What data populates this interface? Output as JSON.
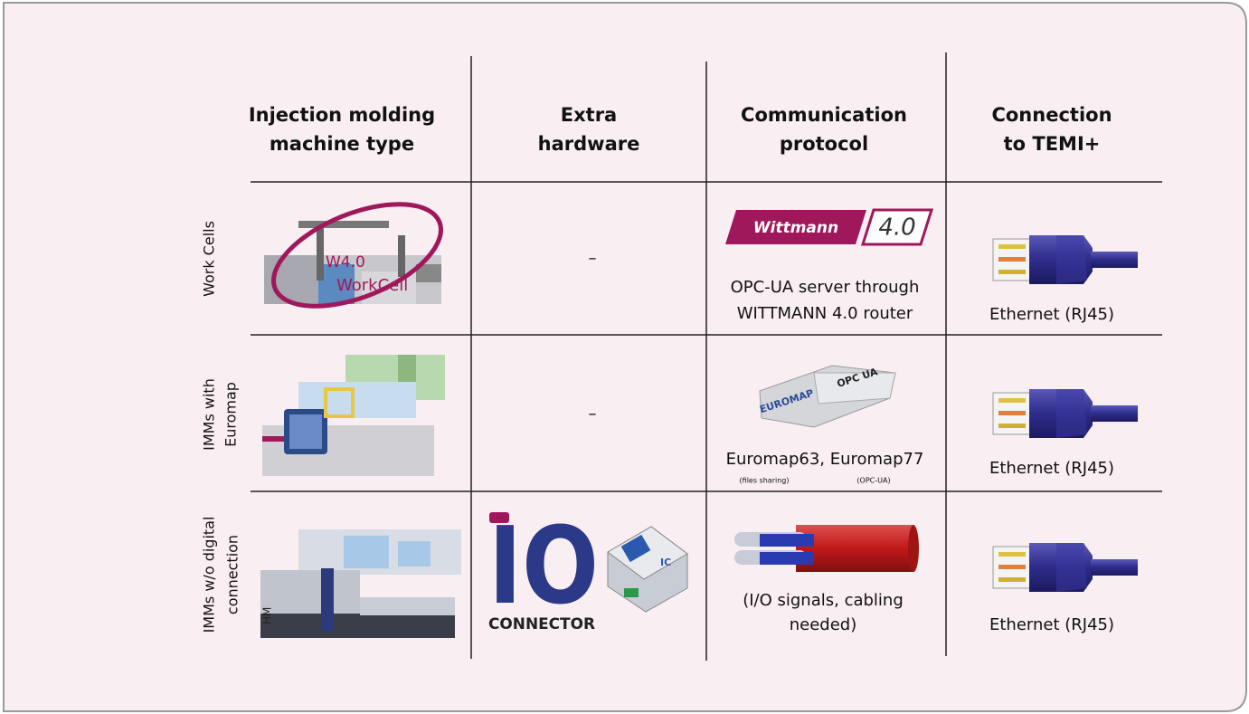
{
  "table": {
    "headers": [
      [
        "Injection molding",
        "machine type"
      ],
      [
        "Extra",
        "hardware"
      ],
      [
        "Communication",
        "protocol"
      ],
      [
        "Connection",
        "to TEMI+"
      ]
    ],
    "rows": [
      {
        "label": [
          "Work Cells"
        ],
        "machine_marks": [
          "W4.0",
          "WorkCell"
        ],
        "extra_hardware": "–",
        "protocol_logo": [
          "Wittmann",
          "4.0"
        ],
        "protocol": [
          "OPC-UA server through",
          "WITTMANN 4.0 router"
        ],
        "connection": "Ethernet (RJ45)"
      },
      {
        "label": [
          "IMMs with",
          "Euromap"
        ],
        "extra_hardware": "–",
        "protocol_logo": [
          "EUROMAP",
          "OPC UA"
        ],
        "protocol": [
          "Euromap63, Euromap77"
        ],
        "protocol_notes": [
          "(files sharing)",
          "(OPC-UA)"
        ],
        "connection": "Ethernet (RJ45)"
      },
      {
        "label": [
          "IMMs w/o digital",
          "connection"
        ],
        "machine_marks": [
          "HM"
        ],
        "extra_hardware_logo": [
          "IO",
          "CONNECTOR",
          "IC"
        ],
        "protocol": [
          "(I/O signals, cabling",
          "needed)"
        ],
        "connection": "Ethernet (RJ45)"
      }
    ]
  }
}
